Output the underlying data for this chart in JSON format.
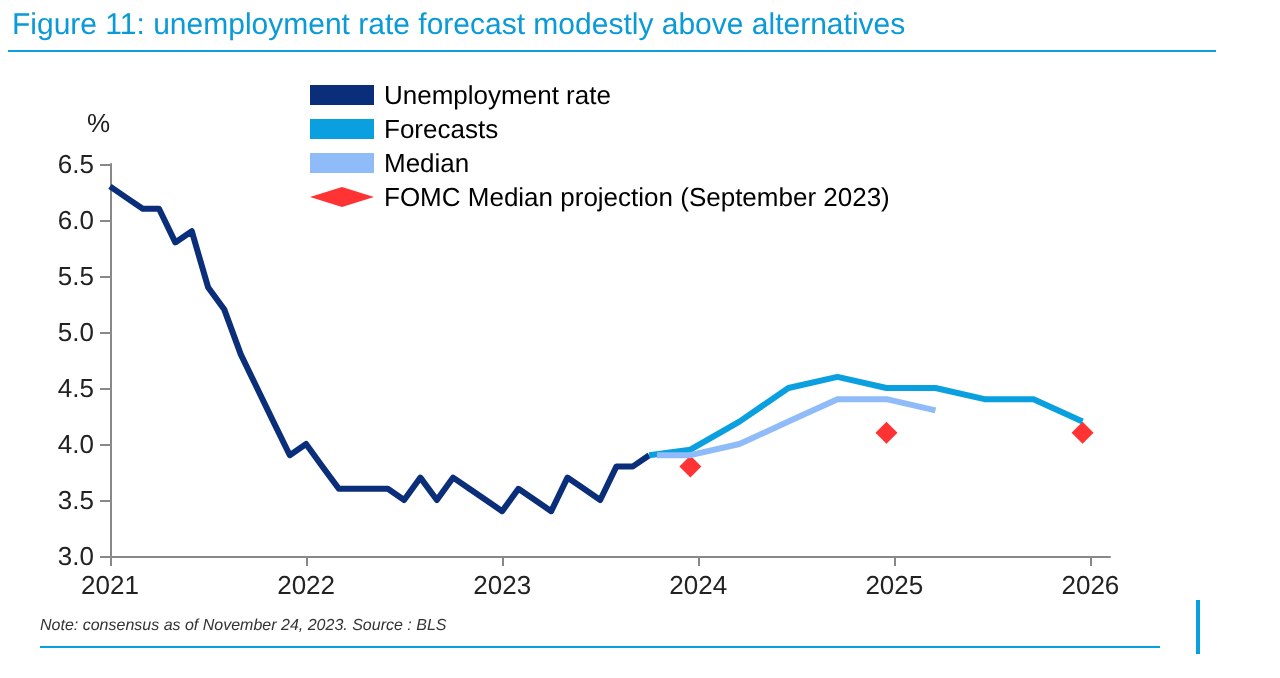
{
  "chart_data": {
    "type": "line",
    "title": "Figure 11: unemployment rate forecast modestly above alternatives",
    "ylabel": "%",
    "annotations": [
      "Note: consensus as of November 24, 2023. Source : BLS"
    ],
    "xlim": [
      2021,
      2026.1
    ],
    "xticks": [
      2021,
      2022,
      2023,
      2024,
      2025,
      2026
    ],
    "ylim": [
      3.0,
      6.5
    ],
    "yticks": [
      {
        "value": 3.0,
        "label": "3.0"
      },
      {
        "value": 3.5,
        "label": "3.5"
      },
      {
        "value": 4.0,
        "label": "4.0"
      },
      {
        "value": 4.5,
        "label": "4.5"
      },
      {
        "value": 5.0,
        "label": "5.0"
      },
      {
        "value": 5.5,
        "label": "5.5"
      },
      {
        "value": 6.0,
        "label": "6.0"
      },
      {
        "value": 6.5,
        "label": "6.5"
      }
    ],
    "grid": false,
    "legend": "top left",
    "marker": "none",
    "line_style": "solid",
    "series": [
      {
        "name": "Unemployment rate",
        "color": "#0a2e7a",
        "x": [
          2021.0,
          2021.083,
          2021.167,
          2021.25,
          2021.333,
          2021.417,
          2021.5,
          2021.583,
          2021.667,
          2021.75,
          2021.833,
          2021.917,
          2022.0,
          2022.083,
          2022.167,
          2022.25,
          2022.333,
          2022.417,
          2022.5,
          2022.583,
          2022.667,
          2022.75,
          2022.833,
          2022.917,
          2023.0,
          2023.083,
          2023.167,
          2023.25,
          2023.333,
          2023.417,
          2023.5,
          2023.583,
          2023.667,
          2023.75
        ],
        "values": [
          6.3,
          6.2,
          6.1,
          6.1,
          5.8,
          5.9,
          5.4,
          5.2,
          4.8,
          4.5,
          4.2,
          3.9,
          4.0,
          3.8,
          3.6,
          3.6,
          3.6,
          3.6,
          3.5,
          3.7,
          3.5,
          3.7,
          3.6,
          3.5,
          3.4,
          3.6,
          3.5,
          3.4,
          3.7,
          3.6,
          3.5,
          3.8,
          3.8,
          3.9
        ]
      },
      {
        "name": "Forecasts",
        "color": "#0aa0e0",
        "x": [
          2023.75,
          2023.96,
          2024.21,
          2024.46,
          2024.71,
          2024.96,
          2025.21,
          2025.46,
          2025.71,
          2025.96
        ],
        "values": [
          3.9,
          3.95,
          4.2,
          4.5,
          4.6,
          4.5,
          4.5,
          4.4,
          4.4,
          4.2
        ]
      },
      {
        "name": "Median",
        "color": "#8fbcf8",
        "x": [
          2023.79,
          2023.96,
          2024.21,
          2024.46,
          2024.71,
          2024.96,
          2025.21
        ],
        "values": [
          3.9,
          3.9,
          4.0,
          4.2,
          4.4,
          4.4,
          4.3
        ]
      },
      {
        "name": "FOMC Median projection (September 2023)",
        "type": "scatter",
        "marker": "diamond",
        "color": "#ff0000",
        "x": [
          2023.96,
          2024.96,
          2025.96
        ],
        "values": [
          3.8,
          4.1,
          4.1
        ]
      }
    ]
  }
}
